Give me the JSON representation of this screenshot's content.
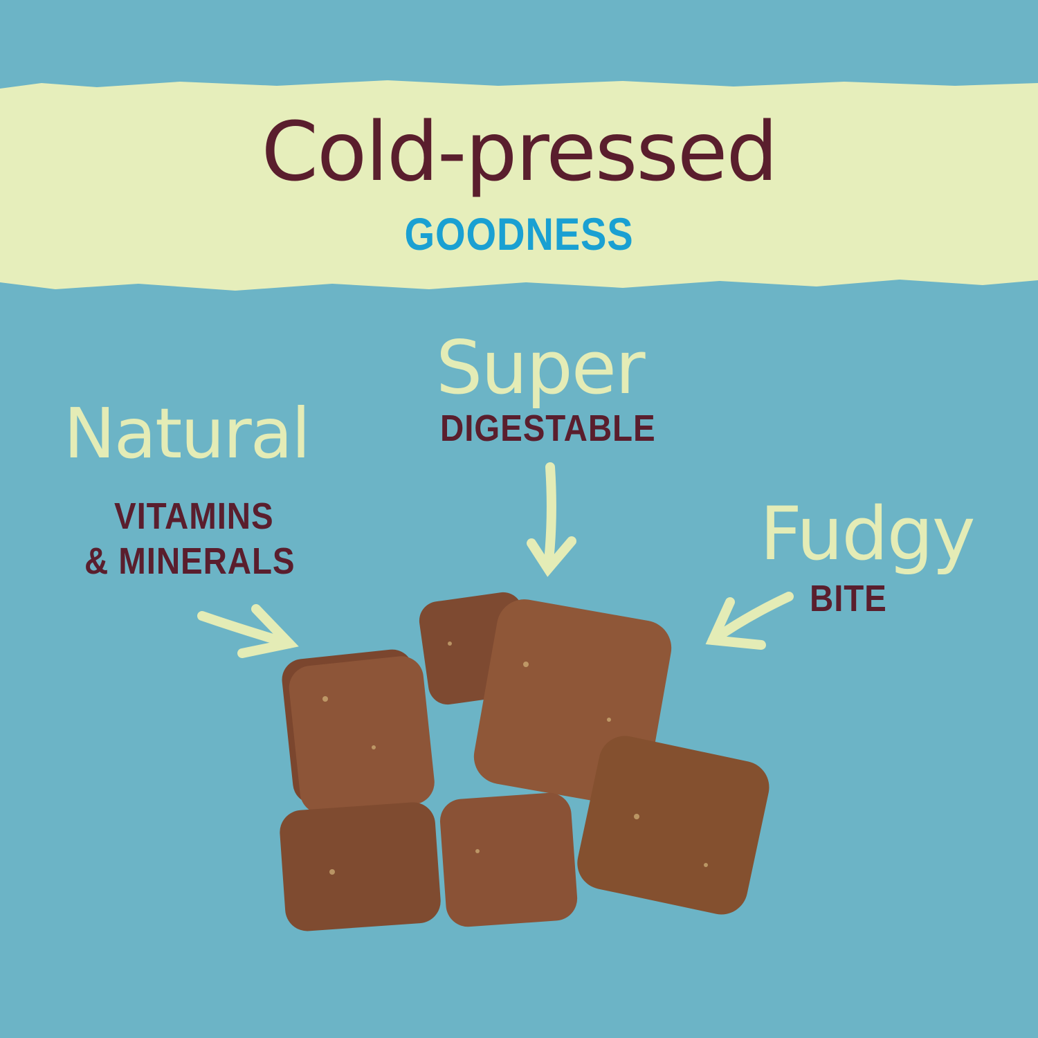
{
  "colors": {
    "background": "#6cb4c6",
    "banner": "#e6eebb",
    "maroon": "#5a1e2d",
    "blue": "#1aa0d2",
    "cream": "#e4ecb6",
    "treat": "#8a5236"
  },
  "banner": {
    "title": "Cold-pressed",
    "subtitle": "GOODNESS"
  },
  "callouts": {
    "super": {
      "script": "Super",
      "caps": "DIGESTABLE"
    },
    "natural": {
      "script": "Natural",
      "caps_line1": "VITAMINS",
      "caps_line2": "& MINERALS"
    },
    "fudgy": {
      "script": "Fudgy",
      "caps": "BITE"
    }
  },
  "icons": [
    "arrow-down-icon",
    "arrow-down-right-icon",
    "arrow-down-left-icon"
  ]
}
